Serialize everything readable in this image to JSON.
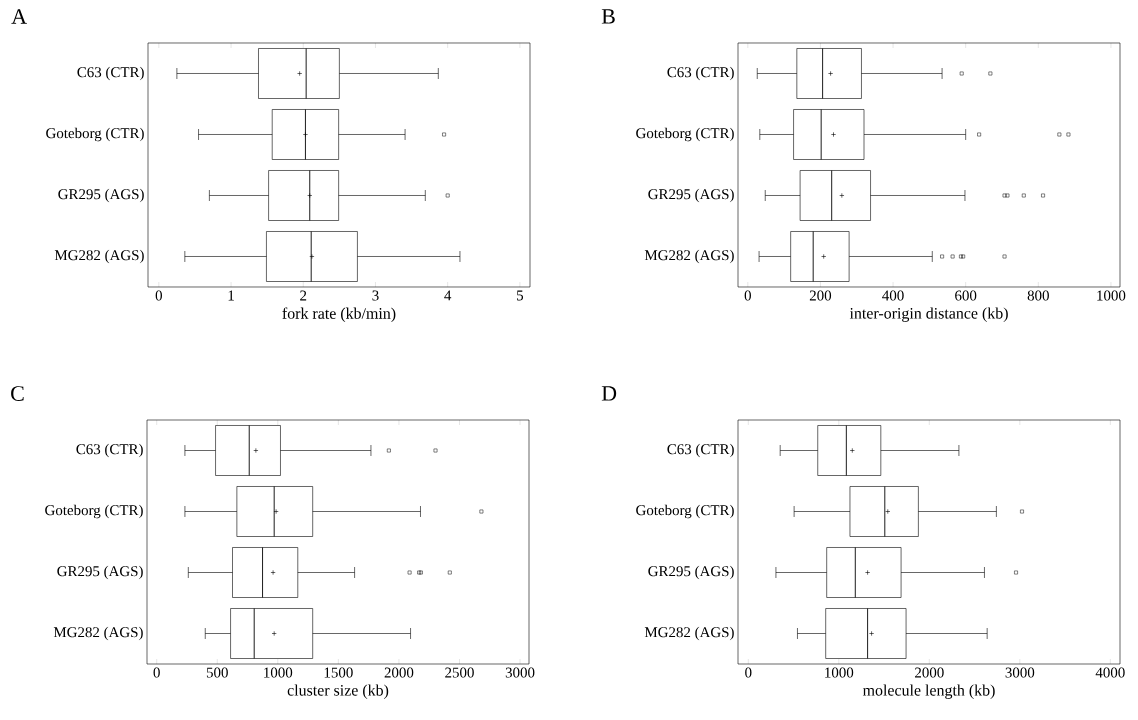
{
  "chart_data": [
    {
      "type": "box",
      "orientation": "horizontal",
      "title": "A",
      "xlabel": "fork rate (kb/min)",
      "categories": [
        "C63 (CTR)",
        "Goteborg (CTR)",
        "GR295 (AGS)",
        "MG282 (AGS)"
      ],
      "xlim": [
        -0.15,
        5.14
      ],
      "xticks": [
        0,
        1,
        2,
        3,
        4,
        5
      ],
      "boxes": [
        {
          "low": 0.25,
          "q1": 1.38,
          "median": 2.04,
          "q3": 2.5,
          "high": 3.87,
          "mean": 1.95
        },
        {
          "low": 0.55,
          "q1": 1.57,
          "median": 2.03,
          "q3": 2.49,
          "high": 3.41,
          "mean": 2.03,
          "outliers": [
            3.95
          ]
        },
        {
          "low": 0.7,
          "q1": 1.52,
          "median": 2.09,
          "q3": 2.49,
          "high": 3.69,
          "mean": 2.09,
          "outliers": [
            4.0
          ]
        },
        {
          "low": 0.36,
          "q1": 1.49,
          "median": 2.11,
          "q3": 2.75,
          "high": 4.17,
          "mean": 2.12
        }
      ]
    },
    {
      "type": "box",
      "orientation": "horizontal",
      "title": "B",
      "xlabel": "inter-origin distance (kb)",
      "categories": [
        "C63 (CTR)",
        "Goteborg (CTR)",
        "GR295 (AGS)",
        "MG282 (AGS)"
      ],
      "xlim": [
        -27,
        1025
      ],
      "xticks": [
        0,
        200,
        400,
        600,
        800,
        1000
      ],
      "boxes": [
        {
          "low": 26,
          "q1": 135,
          "median": 206,
          "q3": 313,
          "high": 535,
          "mean": 228,
          "outliers": [
            589,
            668
          ]
        },
        {
          "low": 33,
          "q1": 126,
          "median": 202,
          "q3": 320,
          "high": 600,
          "mean": 236,
          "outliers": [
            637,
            858,
            883
          ]
        },
        {
          "low": 48,
          "q1": 144,
          "median": 231,
          "q3": 338,
          "high": 598,
          "mean": 259,
          "outliers": [
            707,
            715,
            760,
            813
          ]
        },
        {
          "low": 31,
          "q1": 118,
          "median": 180,
          "q3": 279,
          "high": 508,
          "mean": 209,
          "outliers": [
            535,
            564,
            587,
            593,
            707
          ]
        }
      ]
    },
    {
      "type": "box",
      "orientation": "horizontal",
      "title": "C",
      "xlabel": "cluster size (kb)",
      "categories": [
        "C63 (CTR)",
        "Goteborg (CTR)",
        "GR295 (AGS)",
        "MG282 (AGS)"
      ],
      "xlim": [
        -80,
        3074
      ],
      "xticks": [
        0,
        500,
        1000,
        1500,
        2000,
        2500,
        3000
      ],
      "boxes": [
        {
          "low": 233,
          "q1": 486,
          "median": 764,
          "q3": 1022,
          "high": 1769,
          "mean": 819,
          "outliers": [
            1917,
            2302
          ]
        },
        {
          "low": 233,
          "q1": 662,
          "median": 970,
          "q3": 1288,
          "high": 2178,
          "mean": 986,
          "outliers": [
            2681
          ]
        },
        {
          "low": 261,
          "q1": 626,
          "median": 874,
          "q3": 1165,
          "high": 1634,
          "mean": 961,
          "outliers": [
            2088,
            2167,
            2181,
            2420
          ]
        },
        {
          "low": 401,
          "q1": 610,
          "median": 805,
          "q3": 1288,
          "high": 2096,
          "mean": 970
        }
      ]
    },
    {
      "type": "box",
      "orientation": "horizontal",
      "title": "D",
      "xlabel": "molecule length (kb)",
      "categories": [
        "C63 (CTR)",
        "Goteborg (CTR)",
        "GR295 (AGS)",
        "MG282 (AGS)"
      ],
      "xlim": [
        -114,
        4107
      ],
      "xticks": [
        0,
        1000,
        2000,
        3000,
        4000
      ],
      "boxes": [
        {
          "low": 352,
          "q1": 767,
          "median": 1083,
          "q3": 1464,
          "high": 2327,
          "mean": 1149
        },
        {
          "low": 506,
          "q1": 1123,
          "median": 1508,
          "q3": 1879,
          "high": 2741,
          "mean": 1541,
          "outliers": [
            3024
          ]
        },
        {
          "low": 305,
          "q1": 866,
          "median": 1182,
          "q3": 1688,
          "high": 2609,
          "mean": 1318,
          "outliers": [
            2958
          ]
        },
        {
          "low": 543,
          "q1": 855,
          "median": 1318,
          "q3": 1743,
          "high": 2639,
          "mean": 1362
        }
      ]
    }
  ]
}
